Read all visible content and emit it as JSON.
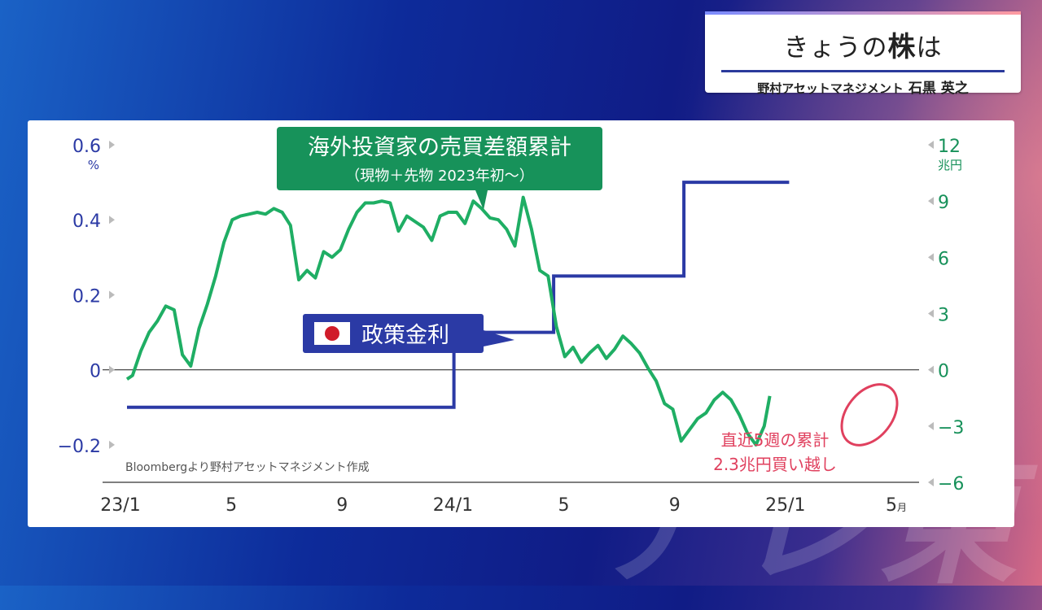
{
  "header": {
    "title_prefix": "きょうの",
    "title_bold": "株",
    "title_suffix": "は",
    "company": "野村アセットマネジメント",
    "person": "石黒 英之"
  },
  "watermark": "テレ東",
  "chart_data": {
    "type": "line",
    "title": "海外投資家の売買差額累計",
    "subtitle": "（現物＋先物 2023年初〜）",
    "policy_label": "政策金利",
    "source": "Bloombergより野村アセットマネジメント作成",
    "annotation": [
      "直近5週の累計",
      "2.3兆円買い越し"
    ],
    "x_ticks": [
      "23/1",
      "5",
      "9",
      "24/1",
      "5",
      "9",
      "25/1",
      "5"
    ],
    "x_tick_suffix_last": "月",
    "x_range": [
      0,
      28.5
    ],
    "left_axis": {
      "unit": "%",
      "ylim": [
        -0.2,
        0.6
      ],
      "ticks": [
        "0.6",
        "0.4",
        "0.2",
        "0",
        "−0.2"
      ],
      "tick_values": [
        0.6,
        0.4,
        0.2,
        0,
        -0.2
      ]
    },
    "right_axis": {
      "unit": "兆円",
      "ylim": [
        -6,
        12
      ],
      "ticks": [
        "12",
        "9",
        "6",
        "3",
        "0",
        "−3",
        "−6"
      ],
      "tick_values": [
        12,
        9,
        6,
        3,
        0,
        -3,
        -6
      ]
    },
    "colors": {
      "policy": "#2b3aa5",
      "investors": "#1fae64",
      "annotation": "#e0405e",
      "label_green": "#17915a",
      "axis_blue": "#2b3aa5"
    },
    "series": [
      {
        "name": "政策金利",
        "axis": "left",
        "x": [
          0,
          11.8,
          11.8,
          15.4,
          15.4,
          20.1,
          20.1,
          23.9
        ],
        "values": [
          -0.1,
          -0.1,
          0.1,
          0.1,
          0.25,
          0.25,
          0.5,
          0.5
        ]
      },
      {
        "name": "海外投資家の売買差額累計",
        "axis": "right",
        "x": [
          0,
          0.2,
          0.5,
          0.8,
          1.1,
          1.4,
          1.7,
          2.0,
          2.3,
          2.6,
          2.9,
          3.2,
          3.5,
          3.8,
          4.1,
          4.4,
          4.7,
          5.0,
          5.3,
          5.6,
          5.9,
          6.2,
          6.5,
          6.8,
          7.1,
          7.4,
          7.7,
          8.0,
          8.3,
          8.6,
          8.9,
          9.2,
          9.5,
          9.8,
          10.1,
          10.4,
          10.7,
          11.0,
          11.3,
          11.6,
          11.9,
          12.2,
          12.5,
          12.8,
          13.1,
          13.4,
          13.7,
          14.0,
          14.3,
          14.6,
          14.9,
          15.2,
          15.5,
          15.8,
          16.1,
          16.4,
          16.7,
          17.0,
          17.3,
          17.6,
          17.9,
          18.2,
          18.5,
          18.8,
          19.1,
          19.4,
          19.7,
          20.0,
          20.3,
          20.6,
          20.9,
          21.2,
          21.5,
          21.8,
          22.1,
          22.4,
          22.7,
          23.0,
          23.2
        ],
        "values": [
          -0.5,
          -0.3,
          1.0,
          2.0,
          2.6,
          3.4,
          3.2,
          0.8,
          0.2,
          2.2,
          3.5,
          5.0,
          6.8,
          8.0,
          8.2,
          8.3,
          8.4,
          8.3,
          8.6,
          8.4,
          7.7,
          4.8,
          5.3,
          4.9,
          6.3,
          6.0,
          6.4,
          7.5,
          8.4,
          8.9,
          8.9,
          9.0,
          8.9,
          7.4,
          8.2,
          7.9,
          7.6,
          6.9,
          8.2,
          8.4,
          8.4,
          7.8,
          9.0,
          8.6,
          8.1,
          8.0,
          7.5,
          6.6,
          9.2,
          7.5,
          5.3,
          5.0,
          2.3,
          0.7,
          1.2,
          0.4,
          0.9,
          1.3,
          0.6,
          1.1,
          1.8,
          1.4,
          0.9,
          0.1,
          -0.6,
          -1.8,
          -2.1,
          -3.8,
          -3.2,
          -2.6,
          -2.3,
          -1.6,
          -1.2,
          -1.6,
          -2.4,
          -3.4,
          -4.0,
          -3.0,
          -1.4
        ]
      }
    ]
  }
}
